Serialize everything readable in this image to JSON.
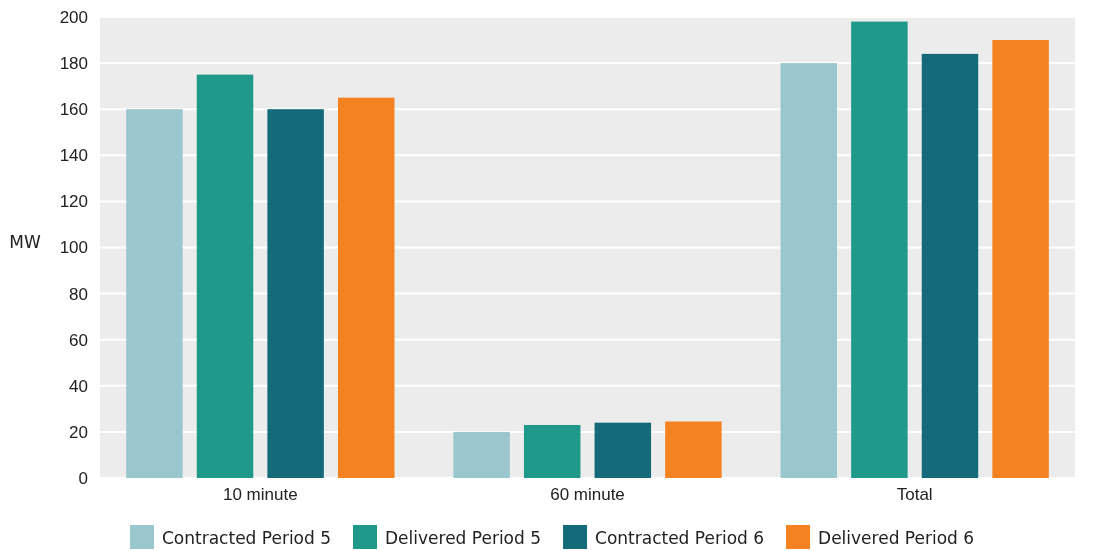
{
  "chart_data": {
    "type": "bar",
    "ylabel": "MW",
    "categories": [
      "10 minute",
      "60 minute",
      "Total"
    ],
    "series": [
      {
        "name": "Contracted Period 5",
        "color": "#9ac7cd",
        "values": [
          160,
          20,
          180
        ]
      },
      {
        "name": "Delivered Period 5",
        "color": "#1f998a",
        "values": [
          175,
          23,
          198
        ]
      },
      {
        "name": "Contracted Period 6",
        "color": "#156a7a",
        "values": [
          160,
          24,
          184
        ]
      },
      {
        "name": "Delivered Period 6",
        "color": "#f58220",
        "values": [
          165,
          24.5,
          190
        ]
      }
    ],
    "ylim": [
      0,
      200
    ],
    "yticks": [
      0,
      20,
      40,
      60,
      80,
      100,
      120,
      140,
      160,
      180,
      200
    ],
    "grid": "y",
    "legend": "bottom"
  }
}
